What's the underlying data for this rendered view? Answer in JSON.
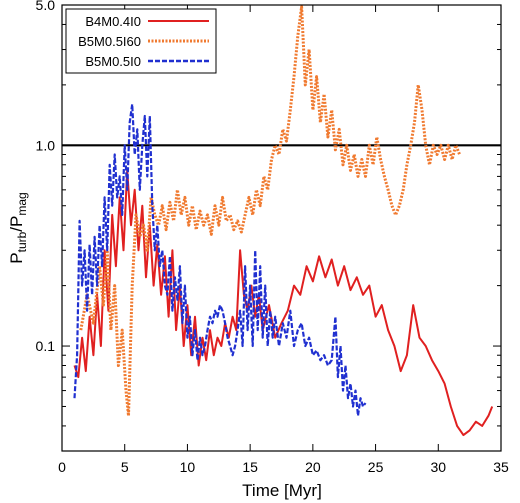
{
  "chart_data": {
    "type": "line",
    "xlabel": "Time [Myr]",
    "ylabel": "P_turb/P_mag",
    "ylabel_parts": {
      "main": "P",
      "sub1": "turb",
      "slash": "/P",
      "sub2": "mag"
    },
    "xlim": [
      0,
      35
    ],
    "ylim": [
      0.03,
      5.0
    ],
    "yscale": "log",
    "xticks": [
      0,
      5,
      10,
      15,
      20,
      25,
      30,
      35
    ],
    "xtick_labels": [
      "0",
      "5",
      "10",
      "15",
      "20",
      "25",
      "30",
      "35"
    ],
    "yticks": [
      0.1,
      1.0,
      5.0
    ],
    "ytick_labels": [
      "0.1",
      "1.0",
      "5.0"
    ],
    "reference_line": {
      "y": 1.0,
      "color": "#000000"
    },
    "legend": {
      "placement": "top-left"
    },
    "grid": false,
    "series": [
      {
        "name": "B4M0.4I0",
        "color": "#e02020",
        "style": "solid",
        "points": [
          [
            1.0,
            0.08
          ],
          [
            1.3,
            0.07
          ],
          [
            1.6,
            0.11
          ],
          [
            1.9,
            0.075
          ],
          [
            2.2,
            0.14
          ],
          [
            2.5,
            0.09
          ],
          [
            2.8,
            0.18
          ],
          [
            3.1,
            0.1
          ],
          [
            3.4,
            0.3
          ],
          [
            3.7,
            0.15
          ],
          [
            4.0,
            0.45
          ],
          [
            4.3,
            0.25
          ],
          [
            4.6,
            0.55
          ],
          [
            4.9,
            0.3
          ],
          [
            5.2,
            0.75
          ],
          [
            5.5,
            0.4
          ],
          [
            5.8,
            0.6
          ],
          [
            6.1,
            0.3
          ],
          [
            6.4,
            0.5
          ],
          [
            6.7,
            0.22
          ],
          [
            7.0,
            0.4
          ],
          [
            7.3,
            0.2
          ],
          [
            7.6,
            0.32
          ],
          [
            7.9,
            0.18
          ],
          [
            8.2,
            0.28
          ],
          [
            8.5,
            0.14
          ],
          [
            8.8,
            0.3
          ],
          [
            9.1,
            0.12
          ],
          [
            9.4,
            0.2
          ],
          [
            9.7,
            0.1
          ],
          [
            10.0,
            0.16
          ],
          [
            10.3,
            0.09
          ],
          [
            10.6,
            0.14
          ],
          [
            10.9,
            0.08
          ],
          [
            11.2,
            0.11
          ],
          [
            11.5,
            0.085
          ],
          [
            11.8,
            0.12
          ],
          [
            12.1,
            0.09
          ],
          [
            12.4,
            0.11
          ],
          [
            12.7,
            0.1
          ],
          [
            13.0,
            0.13
          ],
          [
            13.3,
            0.11
          ],
          [
            13.6,
            0.14
          ],
          [
            13.9,
            0.12
          ],
          [
            14.2,
            0.3
          ],
          [
            14.5,
            0.18
          ],
          [
            14.8,
            0.15
          ],
          [
            15.1,
            0.2
          ],
          [
            15.4,
            0.14
          ],
          [
            15.7,
            0.18
          ],
          [
            16.0,
            0.12
          ],
          [
            16.5,
            0.16
          ],
          [
            17.0,
            0.11
          ],
          [
            17.5,
            0.13
          ],
          [
            18.0,
            0.15
          ],
          [
            18.5,
            0.2
          ],
          [
            19.0,
            0.18
          ],
          [
            19.5,
            0.25
          ],
          [
            20.0,
            0.21
          ],
          [
            20.5,
            0.28
          ],
          [
            21.0,
            0.22
          ],
          [
            21.5,
            0.27
          ],
          [
            22.0,
            0.2
          ],
          [
            22.5,
            0.25
          ],
          [
            23.0,
            0.19
          ],
          [
            23.5,
            0.22
          ],
          [
            24.0,
            0.18
          ],
          [
            24.5,
            0.2
          ],
          [
            25.0,
            0.14
          ],
          [
            25.5,
            0.16
          ],
          [
            26.0,
            0.12
          ],
          [
            26.5,
            0.1
          ],
          [
            27.0,
            0.075
          ],
          [
            27.5,
            0.09
          ],
          [
            28.0,
            0.16
          ],
          [
            28.5,
            0.11
          ],
          [
            29.0,
            0.1
          ],
          [
            29.5,
            0.085
          ],
          [
            30.0,
            0.075
          ],
          [
            30.5,
            0.065
          ],
          [
            31.0,
            0.05
          ],
          [
            31.5,
            0.04
          ],
          [
            32.0,
            0.036
          ],
          [
            32.5,
            0.038
          ],
          [
            33.0,
            0.042
          ],
          [
            33.5,
            0.04
          ],
          [
            34.0,
            0.045
          ],
          [
            34.3,
            0.05
          ]
        ]
      },
      {
        "name": "B5M0.5I60",
        "color": "#f07a30",
        "style": "dotted",
        "points": [
          [
            1.5,
            0.12
          ],
          [
            2.0,
            0.18
          ],
          [
            2.5,
            0.13
          ],
          [
            3.0,
            0.25
          ],
          [
            3.3,
            0.16
          ],
          [
            3.6,
            0.3
          ],
          [
            3.9,
            0.12
          ],
          [
            4.2,
            0.2
          ],
          [
            4.5,
            0.08
          ],
          [
            4.8,
            0.12
          ],
          [
            5.1,
            0.06
          ],
          [
            5.3,
            0.045
          ],
          [
            5.6,
            0.2
          ],
          [
            5.9,
            0.45
          ],
          [
            6.2,
            0.35
          ],
          [
            6.5,
            0.4
          ],
          [
            6.8,
            0.3
          ],
          [
            7.1,
            0.55
          ],
          [
            7.4,
            0.45
          ],
          [
            7.7,
            0.4
          ],
          [
            8.0,
            0.5
          ],
          [
            8.3,
            0.38
          ],
          [
            8.6,
            0.52
          ],
          [
            8.9,
            0.42
          ],
          [
            9.2,
            0.6
          ],
          [
            9.5,
            0.45
          ],
          [
            9.8,
            0.55
          ],
          [
            10.1,
            0.4
          ],
          [
            10.4,
            0.5
          ],
          [
            10.7,
            0.38
          ],
          [
            11.0,
            0.47
          ],
          [
            11.3,
            0.4
          ],
          [
            11.6,
            0.45
          ],
          [
            11.9,
            0.36
          ],
          [
            12.2,
            0.5
          ],
          [
            12.5,
            0.4
          ],
          [
            12.8,
            0.55
          ],
          [
            13.1,
            0.42
          ],
          [
            13.4,
            0.45
          ],
          [
            13.7,
            0.38
          ],
          [
            14.0,
            0.42
          ],
          [
            14.3,
            0.37
          ],
          [
            14.6,
            0.45
          ],
          [
            14.9,
            0.55
          ],
          [
            15.2,
            0.45
          ],
          [
            15.5,
            0.6
          ],
          [
            15.8,
            0.5
          ],
          [
            16.1,
            0.7
          ],
          [
            16.4,
            0.6
          ],
          [
            16.7,
            0.85
          ],
          [
            17.0,
            1.0
          ],
          [
            17.3,
            0.9
          ],
          [
            17.6,
            1.2
          ],
          [
            17.9,
            1.05
          ],
          [
            18.2,
            1.5
          ],
          [
            18.5,
            2.2
          ],
          [
            18.8,
            3.5
          ],
          [
            19.1,
            4.9
          ],
          [
            19.4,
            2.0
          ],
          [
            19.7,
            3.0
          ],
          [
            20.0,
            1.5
          ],
          [
            20.3,
            2.2
          ],
          [
            20.6,
            1.3
          ],
          [
            20.9,
            1.8
          ],
          [
            21.2,
            1.1
          ],
          [
            21.5,
            1.5
          ],
          [
            21.8,
            0.95
          ],
          [
            22.1,
            1.2
          ],
          [
            22.4,
            0.8
          ],
          [
            22.7,
            1.0
          ],
          [
            23.0,
            0.75
          ],
          [
            23.3,
            0.9
          ],
          [
            23.6,
            0.7
          ],
          [
            23.9,
            0.85
          ],
          [
            24.2,
            0.7
          ],
          [
            24.5,
            1.0
          ],
          [
            24.8,
            0.8
          ],
          [
            25.1,
            1.1
          ],
          [
            25.4,
            0.85
          ],
          [
            25.7,
            0.7
          ],
          [
            26.0,
            0.6
          ],
          [
            26.3,
            0.5
          ],
          [
            26.6,
            0.45
          ],
          [
            26.9,
            0.5
          ],
          [
            27.2,
            0.6
          ],
          [
            27.5,
            0.8
          ],
          [
            27.8,
            1.0
          ],
          [
            28.1,
            1.3
          ],
          [
            28.4,
            2.0
          ],
          [
            28.7,
            1.5
          ],
          [
            29.0,
            1.0
          ],
          [
            29.3,
            0.8
          ],
          [
            29.6,
            1.0
          ],
          [
            29.9,
            0.9
          ],
          [
            30.2,
            1.0
          ],
          [
            30.5,
            0.85
          ],
          [
            30.8,
            1.0
          ],
          [
            31.1,
            0.85
          ],
          [
            31.4,
            1.0
          ],
          [
            31.7,
            0.9
          ]
        ]
      },
      {
        "name": "B5M0.5I0",
        "color": "#2030d0",
        "style": "dashed",
        "points": [
          [
            1.0,
            0.055
          ],
          [
            1.2,
            0.09
          ],
          [
            1.4,
            0.42
          ],
          [
            1.6,
            0.2
          ],
          [
            1.8,
            0.3
          ],
          [
            2.0,
            0.15
          ],
          [
            2.2,
            0.32
          ],
          [
            2.4,
            0.18
          ],
          [
            2.6,
            0.35
          ],
          [
            2.8,
            0.2
          ],
          [
            3.0,
            0.4
          ],
          [
            3.2,
            0.25
          ],
          [
            3.4,
            0.55
          ],
          [
            3.6,
            0.3
          ],
          [
            3.8,
            0.8
          ],
          [
            4.0,
            0.5
          ],
          [
            4.2,
            0.9
          ],
          [
            4.4,
            0.55
          ],
          [
            4.6,
            0.7
          ],
          [
            4.8,
            0.45
          ],
          [
            5.0,
            1.0
          ],
          [
            5.2,
            0.6
          ],
          [
            5.4,
            1.3
          ],
          [
            5.6,
            1.6
          ],
          [
            5.8,
            0.9
          ],
          [
            6.0,
            1.2
          ],
          [
            6.2,
            0.6
          ],
          [
            6.4,
            1.0
          ],
          [
            6.6,
            1.4
          ],
          [
            6.8,
            0.7
          ],
          [
            7.0,
            1.4
          ],
          [
            7.2,
            0.5
          ],
          [
            7.4,
            0.3
          ],
          [
            7.6,
            0.4
          ],
          [
            7.8,
            0.25
          ],
          [
            8.0,
            0.3
          ],
          [
            8.2,
            0.2
          ],
          [
            8.4,
            0.18
          ],
          [
            8.6,
            0.28
          ],
          [
            8.8,
            0.15
          ],
          [
            9.0,
            0.22
          ],
          [
            9.2,
            0.17
          ],
          [
            9.4,
            0.25
          ],
          [
            9.6,
            0.13
          ],
          [
            9.8,
            0.2
          ],
          [
            10.0,
            0.11
          ],
          [
            10.2,
            0.14
          ],
          [
            10.4,
            0.09
          ],
          [
            10.6,
            0.12
          ],
          [
            10.8,
            0.085
          ],
          [
            11.0,
            0.11
          ],
          [
            11.2,
            0.09
          ],
          [
            11.4,
            0.1
          ],
          [
            11.6,
            0.12
          ],
          [
            11.8,
            0.14
          ],
          [
            12.0,
            0.13
          ],
          [
            12.2,
            0.15
          ],
          [
            12.4,
            0.14
          ],
          [
            12.6,
            0.16
          ],
          [
            12.8,
            0.15
          ],
          [
            13.0,
            0.13
          ],
          [
            13.2,
            0.11
          ],
          [
            13.4,
            0.1
          ],
          [
            13.6,
            0.09
          ],
          [
            13.8,
            0.1
          ],
          [
            14.0,
            0.12
          ],
          [
            14.2,
            0.15
          ],
          [
            14.4,
            0.1
          ],
          [
            14.6,
            0.25
          ],
          [
            14.8,
            0.12
          ],
          [
            15.0,
            0.2
          ],
          [
            15.2,
            0.1
          ],
          [
            15.4,
            0.3
          ],
          [
            15.6,
            0.12
          ],
          [
            15.8,
            0.25
          ],
          [
            16.0,
            0.11
          ],
          [
            16.2,
            0.2
          ],
          [
            16.4,
            0.1
          ],
          [
            16.6,
            0.15
          ],
          [
            16.8,
            0.11
          ],
          [
            17.0,
            0.14
          ],
          [
            17.3,
            0.1
          ],
          [
            17.6,
            0.13
          ],
          [
            17.9,
            0.11
          ],
          [
            18.2,
            0.15
          ],
          [
            18.5,
            0.1
          ],
          [
            18.8,
            0.12
          ],
          [
            19.1,
            0.13
          ],
          [
            19.4,
            0.1
          ],
          [
            19.7,
            0.11
          ],
          [
            20.0,
            0.09
          ],
          [
            20.3,
            0.095
          ],
          [
            20.6,
            0.085
          ],
          [
            20.9,
            0.09
          ],
          [
            21.2,
            0.08
          ],
          [
            21.5,
            0.085
          ],
          [
            21.8,
            0.14
          ],
          [
            22.0,
            0.07
          ],
          [
            22.2,
            0.1
          ],
          [
            22.4,
            0.06
          ],
          [
            22.6,
            0.08
          ],
          [
            22.8,
            0.055
          ],
          [
            23.0,
            0.065
          ],
          [
            23.2,
            0.05
          ],
          [
            23.4,
            0.06
          ],
          [
            23.6,
            0.045
          ],
          [
            23.8,
            0.055
          ],
          [
            24.0,
            0.05
          ],
          [
            24.2,
            0.052
          ]
        ]
      }
    ]
  }
}
